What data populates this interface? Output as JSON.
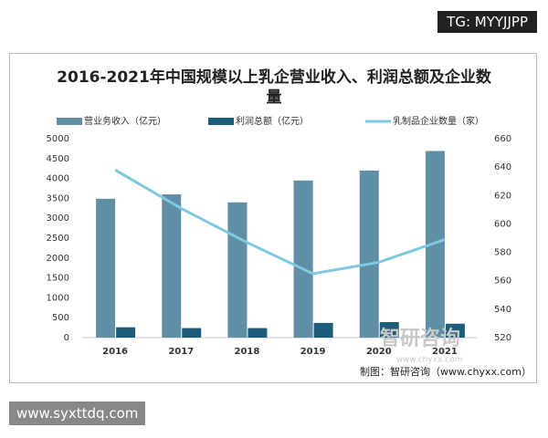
{
  "chart_data": {
    "type": "bar_line",
    "title": "2016-2021年中国规模以上乳企营业收入、利润总额及企业数量",
    "categories": [
      "2016",
      "2017",
      "2018",
      "2019",
      "2020",
      "2021"
    ],
    "series": [
      {
        "name": "营业务收入（亿元）",
        "color": "#5f8ea6",
        "type": "bar",
        "values": [
          3490,
          3600,
          3400,
          3950,
          4200,
          4690
        ]
      },
      {
        "name": "利润总额（亿元）",
        "color": "#1d5d79",
        "type": "bar",
        "values": [
          260,
          240,
          240,
          370,
          390,
          350
        ]
      },
      {
        "name": "乳制品企业数量（家）",
        "color": "#7ec8e0",
        "type": "line",
        "axis": "y2",
        "values": [
          638,
          611,
          587,
          565,
          573,
          589
        ]
      }
    ],
    "ylim": [
      0,
      5000
    ],
    "yticks": [
      0,
      500,
      1000,
      1500,
      2000,
      2500,
      3000,
      3500,
      4000,
      4500,
      5000
    ],
    "y2lim": [
      520,
      660
    ],
    "y2ticks": [
      520,
      540,
      560,
      580,
      600,
      620,
      640,
      660
    ],
    "source": "制图：智研咨询（www.chyxx.com）",
    "watermark": "智研咨询",
    "watermark_url": "www.chyxx.com"
  },
  "overlay": {
    "tag": "TG: MYYJJPP",
    "site": "www.syxttdq.com"
  }
}
